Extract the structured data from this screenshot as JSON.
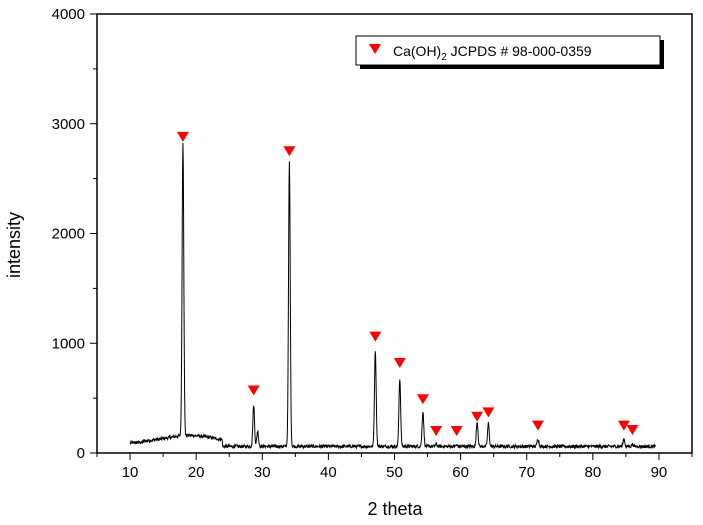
{
  "chart_data": {
    "type": "line",
    "title": "",
    "xlabel": "2 theta",
    "ylabel": "intensity",
    "xlim": [
      5,
      95
    ],
    "ylim": [
      0,
      4000
    ],
    "xticks": [
      10,
      20,
      30,
      40,
      50,
      60,
      70,
      80,
      90
    ],
    "yticks": [
      0,
      1000,
      2000,
      3000,
      4000
    ],
    "grid": false,
    "legend": {
      "position": "top-right",
      "entries": [
        {
          "label_main": "Ca(OH)",
          "label_sub": "2",
          "label_rest": " JCPDS # 98-000-0359",
          "marker": "red-down-triangle"
        }
      ]
    },
    "line_color": "#000000",
    "marker_color": "#ff0000",
    "peaks": [
      {
        "x": 18.0,
        "y": 2760
      },
      {
        "x": 28.7,
        "y": 460
      },
      {
        "x": 29.3,
        "y": 220
      },
      {
        "x": 34.1,
        "y": 2680
      },
      {
        "x": 47.1,
        "y": 960
      },
      {
        "x": 50.8,
        "y": 700
      },
      {
        "x": 54.3,
        "y": 400
      },
      {
        "x": 56.3,
        "y": 100
      },
      {
        "x": 59.4,
        "y": 90
      },
      {
        "x": 62.5,
        "y": 310
      },
      {
        "x": 64.2,
        "y": 290
      },
      {
        "x": 71.7,
        "y": 150
      },
      {
        "x": 84.7,
        "y": 150
      },
      {
        "x": 86.0,
        "y": 100
      }
    ],
    "markers": [
      {
        "x": 18.0,
        "y": 2880
      },
      {
        "x": 28.7,
        "y": 570
      },
      {
        "x": 34.1,
        "y": 2750
      },
      {
        "x": 47.1,
        "y": 1060
      },
      {
        "x": 50.8,
        "y": 820
      },
      {
        "x": 54.3,
        "y": 490
      },
      {
        "x": 56.3,
        "y": 200
      },
      {
        "x": 59.4,
        "y": 200
      },
      {
        "x": 62.5,
        "y": 330
      },
      {
        "x": 64.2,
        "y": 370
      },
      {
        "x": 71.7,
        "y": 250
      },
      {
        "x": 84.7,
        "y": 250
      },
      {
        "x": 86.0,
        "y": 210
      }
    ]
  }
}
